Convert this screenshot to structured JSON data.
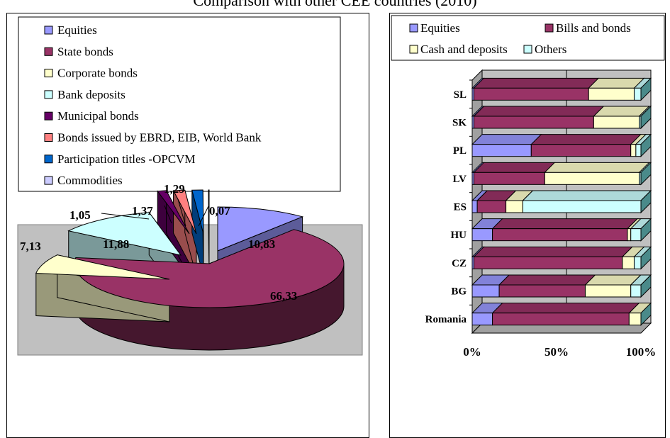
{
  "title": "Comparison with other CEE countries (2010)",
  "colors": {
    "equities": "#9999ff",
    "bonds": "#993366",
    "cash": "#ffffcc",
    "others": "#ccffff",
    "municipal": "#660066",
    "ebrd": "#ff8080",
    "opcvm": "#0066cc",
    "commodities": "#ccccff",
    "plot_bg": "#c0c0c0",
    "bar_top": "#d8cfa8",
    "bar_side": "#4a8a8a"
  },
  "chart_data": [
    {
      "type": "pie",
      "legend_position": "top",
      "slices": [
        {
          "name": "Equities",
          "value": 10.83,
          "label": "10,83",
          "color": "#9999ff"
        },
        {
          "name": "State bonds",
          "value": 66.33,
          "label": "66,33",
          "color": "#993366"
        },
        {
          "name": "Corporate bonds",
          "value": 7.13,
          "label": "7,13",
          "color": "#ffffcc"
        },
        {
          "name": "Bank deposits",
          "value": 11.88,
          "label": "11,88",
          "color": "#ccffff"
        },
        {
          "name": "Municipal bonds",
          "value": 1.05,
          "label": "1,05",
          "color": "#660066"
        },
        {
          "name": "Bonds issued by EBRD, EIB, World Bank",
          "value": 1.37,
          "label": "1,37",
          "color": "#ff8080"
        },
        {
          "name": "Participation titles -OPCVM",
          "value": 1.29,
          "label": "1,29",
          "color": "#0066cc"
        },
        {
          "name": "Commodities",
          "value": 0.07,
          "label": "0,07",
          "color": "#ccccff"
        }
      ]
    },
    {
      "type": "bar",
      "orientation": "horizontal",
      "stacked": "percent",
      "legend_position": "top",
      "categories": [
        "SL",
        "SK",
        "PL",
        "LV",
        "ES",
        "HU",
        "CZ",
        "BG",
        "Romania"
      ],
      "series": [
        {
          "name": "Equities",
          "color": "#9999ff",
          "values": [
            1,
            1,
            35,
            1,
            3,
            12,
            1,
            16,
            12
          ]
        },
        {
          "name": "Bills and bonds",
          "color": "#993366",
          "values": [
            68,
            71,
            59,
            42,
            17,
            80,
            88,
            51,
            81
          ]
        },
        {
          "name": "Cash and deposits",
          "color": "#ffffcc",
          "values": [
            27,
            27,
            3,
            56,
            10,
            2,
            7,
            27,
            7
          ]
        },
        {
          "name": "Others",
          "color": "#ccffff",
          "values": [
            4,
            1,
            3,
            1,
            70,
            6,
            4,
            6,
            0
          ]
        }
      ],
      "x_ticks": [
        "0%",
        "50%",
        "100%"
      ],
      "xlim": [
        0,
        100
      ]
    }
  ]
}
